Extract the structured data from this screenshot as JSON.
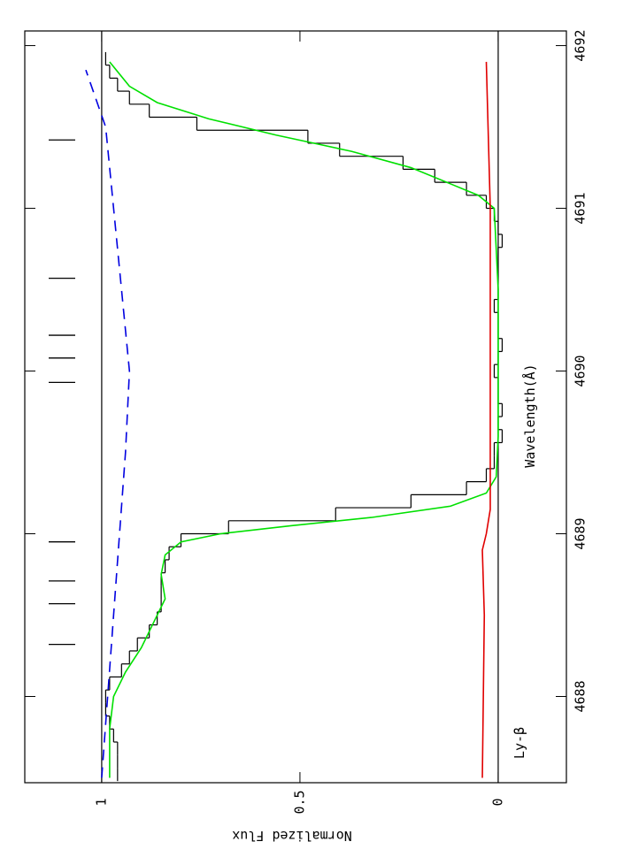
{
  "chart_data": {
    "type": "line",
    "x_label": "Wavelength(Å)",
    "y_label": "Normalized Flux",
    "annotation": "Ly-β",
    "xlim": [
      4687.47,
      4692.09
    ],
    "ylim": [
      -0.172,
      1.194
    ],
    "xticks": [
      4688,
      4689,
      4690,
      4691,
      4692
    ],
    "yticks": [
      0,
      0.5,
      1
    ],
    "reference_lines": [
      0,
      1
    ],
    "components": [
      4691.42,
      4690.57,
      4690.22,
      4690.08,
      4689.93,
      4688.95,
      4688.71,
      4688.57,
      4688.32
    ],
    "component_color": "#000000",
    "series": [
      {
        "style": "steps",
        "color": "#000000",
        "x": [
          4687.52,
          4687.6,
          4687.68,
          4687.76,
          4687.84,
          4687.92,
          4688.0,
          4688.08,
          4688.16,
          4688.24,
          4688.32,
          4688.4,
          4688.48,
          4688.56,
          4688.64,
          4688.72,
          4688.8,
          4688.88,
          4688.96,
          4689.04,
          4689.12,
          4689.2,
          4689.28,
          4689.36,
          4689.44,
          4689.52,
          4689.6,
          4689.68,
          4689.76,
          4689.84,
          4689.92,
          4690.0,
          4690.08,
          4690.16,
          4690.24,
          4690.32,
          4690.4,
          4690.48,
          4690.56,
          4690.64,
          4690.72,
          4690.8,
          4690.88,
          4690.96,
          4691.04,
          4691.12,
          4691.2,
          4691.28,
          4691.36,
          4691.44,
          4691.52,
          4691.6,
          4691.68,
          4691.76,
          4691.84,
          4691.92
        ],
        "values": [
          0.96,
          0.96,
          0.96,
          0.97,
          0.98,
          0.99,
          0.99,
          0.98,
          0.95,
          0.93,
          0.91,
          0.88,
          0.86,
          0.85,
          0.85,
          0.85,
          0.84,
          0.83,
          0.8,
          0.68,
          0.41,
          0.22,
          0.08,
          0.03,
          0.01,
          0.01,
          -0.01,
          0.0,
          -0.01,
          0.0,
          0.0,
          0.01,
          0.0,
          -0.01,
          0.0,
          0.0,
          0.01,
          0.0,
          0.0,
          0.0,
          0.0,
          -0.01,
          0.0,
          0.01,
          0.03,
          0.08,
          0.16,
          0.24,
          0.4,
          0.48,
          0.76,
          0.88,
          0.93,
          0.96,
          0.98,
          0.99
        ]
      },
      {
        "style": "solid",
        "color": "#00e000",
        "x": [
          4687.5,
          4687.8,
          4688.0,
          4688.15,
          4688.3,
          4688.45,
          4688.6,
          4688.75,
          4688.87,
          4688.95,
          4689.0,
          4689.05,
          4689.1,
          4689.17,
          4689.25,
          4689.35,
          4689.6,
          4690.5,
          4691.0,
          4691.08,
          4691.15,
          4691.25,
          4691.35,
          4691.45,
          4691.55,
          4691.65,
          4691.75,
          4691.9
        ],
        "values": [
          0.98,
          0.98,
          0.97,
          0.94,
          0.9,
          0.87,
          0.84,
          0.85,
          0.84,
          0.8,
          0.7,
          0.52,
          0.32,
          0.12,
          0.03,
          0.005,
          0.0,
          0.0,
          0.01,
          0.05,
          0.12,
          0.22,
          0.37,
          0.56,
          0.73,
          0.86,
          0.93,
          0.98
        ]
      },
      {
        "style": "solid",
        "color": "#e00000",
        "x": [
          4687.5,
          4688.5,
          4688.9,
          4689.0,
          4689.15,
          4689.3,
          4690.5,
          4691.0,
          4691.9
        ],
        "values": [
          0.04,
          0.035,
          0.04,
          0.03,
          0.02,
          0.02,
          0.02,
          0.02,
          0.03
        ]
      },
      {
        "style": "dashed",
        "color": "#0000e0",
        "x": [
          4687.5,
          4688.5,
          4689.5,
          4690.0,
          4690.5,
          4691.0,
          4691.5,
          4691.85
        ],
        "values": [
          1.0,
          0.97,
          0.94,
          0.93,
          0.95,
          0.97,
          0.99,
          1.04
        ]
      }
    ]
  }
}
